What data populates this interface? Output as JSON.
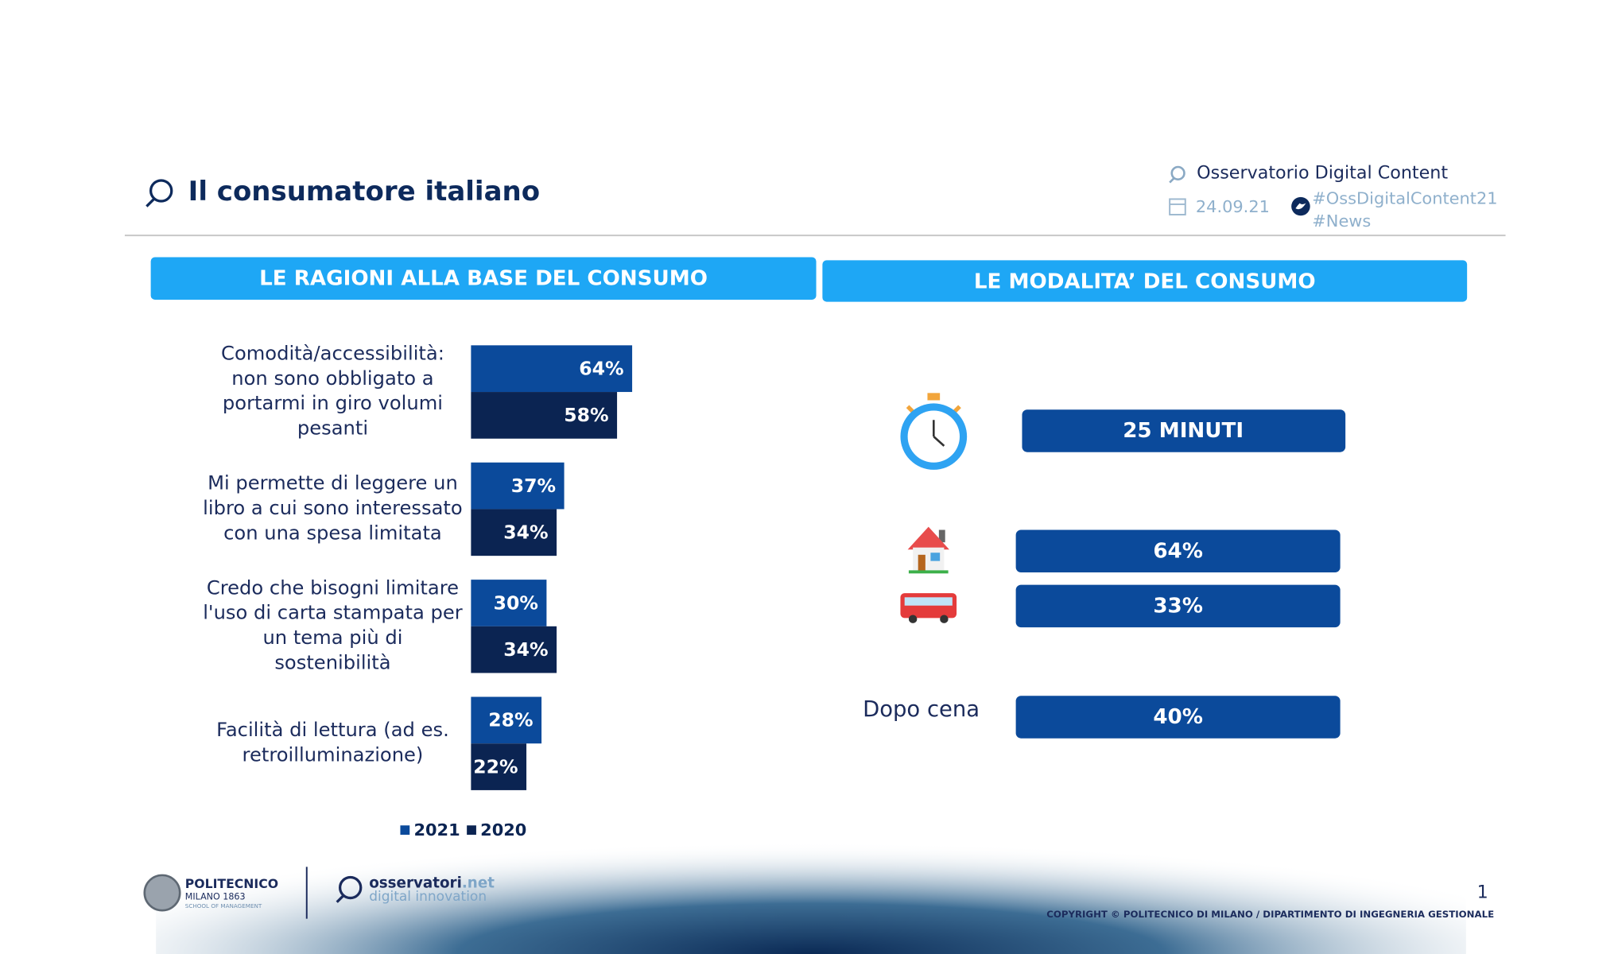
{
  "header": {
    "title": "Il consumatore italiano",
    "observatory": "Osservatorio Digital Content",
    "date": "24.09.21",
    "hashtags": [
      "#OssDigitalContent21",
      "#News"
    ]
  },
  "left_panel": {
    "title": "LE RAGIONI ALLA BASE DEL CONSUMO"
  },
  "chart_data": {
    "type": "bar",
    "orientation": "horizontal",
    "categories": [
      "Comodità/accessibilità: non sono obbligato a portarmi in giro volumi pesanti",
      "Mi permette di leggere un libro a cui sono interessato con una spesa limitata",
      "Credo che bisogni limitare l'uso di carta stampata per un tema più di sostenibilità",
      "Facilità di lettura (ad es. retroilluminazione)"
    ],
    "series": [
      {
        "name": "2021",
        "color": "#0b4a9b",
        "values": [
          64,
          37,
          30,
          28
        ],
        "value_labels": [
          "64%",
          "37%",
          "30%",
          "28%"
        ]
      },
      {
        "name": "2020",
        "color": "#0b2452",
        "values": [
          58,
          34,
          34,
          22
        ],
        "value_labels": [
          "58%",
          "34%",
          "34%",
          "22%"
        ]
      }
    ]
  },
  "right_panel": {
    "title": "LE MODALITA’ DEL CONSUMO",
    "items": [
      {
        "value": "25 MINUTI"
      },
      {
        "value": "64%"
      },
      {
        "value": "33%"
      },
      {
        "label": "Dopo cena",
        "value": "40%"
      }
    ]
  },
  "footer": {
    "logo1": [
      "POLITECNICO",
      "MILANO 1863",
      "SCHOOL OF MANAGEMENT"
    ],
    "logo2": {
      "name": "osservatori",
      "suffix": ".net",
      "tagline": "digital innovation"
    },
    "page": "1",
    "copyright": "COPYRIGHT © POLITECNICO DI MILANO / DIPARTIMENTO DI INGEGNERIA GESTIONALE"
  }
}
